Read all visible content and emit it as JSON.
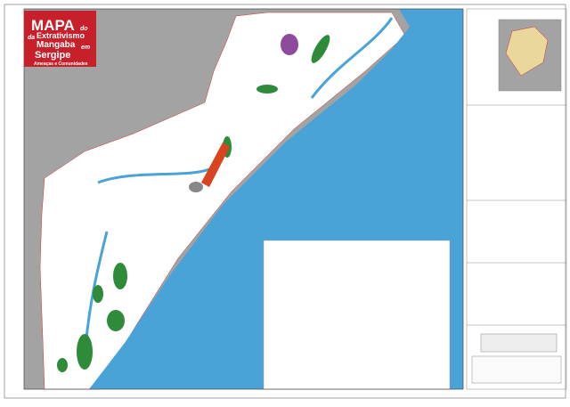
{
  "title_block": {
    "line1": "MAPA",
    "do": "do",
    "da": "da",
    "line2": "Extrativismo",
    "line3": "Mangaba",
    "em": "em",
    "line4": "Sergipe",
    "subtitle": "Ameaças e Comunidades"
  }
}
